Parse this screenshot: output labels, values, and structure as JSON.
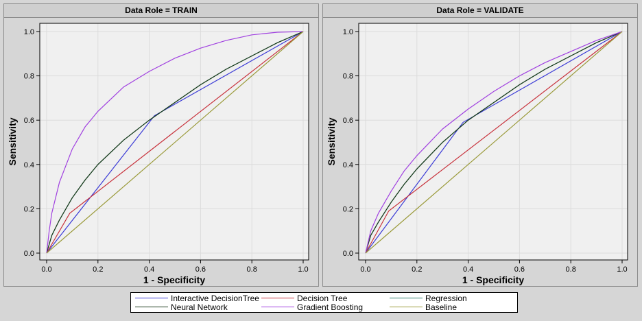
{
  "chart_data": [
    {
      "type": "line",
      "title": "Data Role = TRAIN",
      "xlabel": "1 - Specificity",
      "ylabel": "Sensitivity",
      "xlim": [
        0,
        1
      ],
      "ylim": [
        0,
        1
      ],
      "xticks": [
        "0.0",
        "0.2",
        "0.4",
        "0.6",
        "0.8",
        "1.0"
      ],
      "yticks": [
        "0.0",
        "0.2",
        "0.4",
        "0.6",
        "0.8",
        "1.0"
      ],
      "grid": true,
      "series": [
        {
          "name": "Interactive DecisionTree",
          "color": "#3b3bd6",
          "x": [
            0,
            0.42,
            1.0
          ],
          "y": [
            0,
            0.62,
            1.0
          ]
        },
        {
          "name": "Decision Tree",
          "color": "#c8323c",
          "x": [
            0,
            0.09,
            1.0
          ],
          "y": [
            0,
            0.18,
            1.0
          ]
        },
        {
          "name": "Regression",
          "color": "#2e7d6e",
          "x": [
            0,
            0.02,
            0.05,
            0.1,
            0.15,
            0.2,
            0.3,
            0.4,
            0.5,
            0.6,
            0.7,
            0.8,
            0.9,
            1.0
          ],
          "y": [
            0,
            0.08,
            0.15,
            0.25,
            0.33,
            0.4,
            0.51,
            0.6,
            0.68,
            0.76,
            0.83,
            0.89,
            0.95,
            1.0
          ]
        },
        {
          "name": "Neural Network",
          "color": "#1a3a1a",
          "x": [
            0,
            0.02,
            0.05,
            0.1,
            0.15,
            0.2,
            0.3,
            0.4,
            0.5,
            0.6,
            0.7,
            0.8,
            0.9,
            1.0
          ],
          "y": [
            0,
            0.08,
            0.15,
            0.25,
            0.33,
            0.4,
            0.51,
            0.6,
            0.68,
            0.76,
            0.83,
            0.89,
            0.95,
            1.0
          ]
        },
        {
          "name": "Gradient Boosting",
          "color": "#a040e0",
          "x": [
            0,
            0.01,
            0.02,
            0.05,
            0.1,
            0.15,
            0.2,
            0.3,
            0.4,
            0.5,
            0.6,
            0.7,
            0.8,
            0.9,
            1.0
          ],
          "y": [
            0,
            0.1,
            0.18,
            0.32,
            0.47,
            0.57,
            0.64,
            0.75,
            0.82,
            0.88,
            0.925,
            0.96,
            0.985,
            0.997,
            1.0
          ]
        },
        {
          "name": "Baseline",
          "color": "#9a9a3a",
          "x": [
            0,
            1.0
          ],
          "y": [
            0,
            1.0
          ]
        }
      ]
    },
    {
      "type": "line",
      "title": "Data Role = VALIDATE",
      "xlabel": "1 - Specificity",
      "ylabel": "Sensitivity",
      "xlim": [
        0,
        1
      ],
      "ylim": [
        0,
        1
      ],
      "xticks": [
        "0.0",
        "0.2",
        "0.4",
        "0.6",
        "0.8",
        "1.0"
      ],
      "yticks": [
        "0.0",
        "0.2",
        "0.4",
        "0.6",
        "0.8",
        "1.0"
      ],
      "grid": true,
      "series": [
        {
          "name": "Interactive DecisionTree",
          "color": "#3b3bd6",
          "x": [
            0,
            0.38,
            1.0
          ],
          "y": [
            0,
            0.59,
            1.0
          ]
        },
        {
          "name": "Decision Tree",
          "color": "#c8323c",
          "x": [
            0,
            0.09,
            1.0
          ],
          "y": [
            0,
            0.19,
            1.0
          ]
        },
        {
          "name": "Regression",
          "color": "#2e7d6e",
          "x": [
            0,
            0.02,
            0.05,
            0.1,
            0.15,
            0.2,
            0.3,
            0.4,
            0.5,
            0.6,
            0.7,
            0.8,
            0.9,
            1.0
          ],
          "y": [
            0,
            0.08,
            0.14,
            0.23,
            0.31,
            0.38,
            0.5,
            0.6,
            0.68,
            0.76,
            0.83,
            0.89,
            0.95,
            1.0
          ]
        },
        {
          "name": "Neural Network",
          "color": "#1a3a1a",
          "x": [
            0,
            0.02,
            0.05,
            0.1,
            0.15,
            0.2,
            0.3,
            0.4,
            0.5,
            0.6,
            0.7,
            0.8,
            0.9,
            1.0
          ],
          "y": [
            0,
            0.08,
            0.14,
            0.23,
            0.31,
            0.38,
            0.5,
            0.6,
            0.68,
            0.76,
            0.83,
            0.89,
            0.95,
            1.0
          ]
        },
        {
          "name": "Gradient Boosting",
          "color": "#a040e0",
          "x": [
            0,
            0.02,
            0.05,
            0.1,
            0.15,
            0.2,
            0.3,
            0.4,
            0.5,
            0.6,
            0.7,
            0.8,
            0.9,
            1.0
          ],
          "y": [
            0,
            0.1,
            0.18,
            0.28,
            0.37,
            0.44,
            0.56,
            0.65,
            0.73,
            0.8,
            0.86,
            0.91,
            0.96,
            1.0
          ]
        },
        {
          "name": "Baseline",
          "color": "#9a9a3a",
          "x": [
            0,
            1.0
          ],
          "y": [
            0,
            1.0
          ]
        }
      ]
    }
  ],
  "legend": {
    "items": [
      {
        "label": "Interactive DecisionTree",
        "color": "#3b3bd6"
      },
      {
        "label": "Decision Tree",
        "color": "#c8323c"
      },
      {
        "label": "Regression",
        "color": "#2e7d6e"
      },
      {
        "label": "Neural Network",
        "color": "#1a3a1a"
      },
      {
        "label": "Gradient Boosting",
        "color": "#a040e0"
      },
      {
        "label": "Baseline",
        "color": "#9a9a3a"
      }
    ]
  }
}
